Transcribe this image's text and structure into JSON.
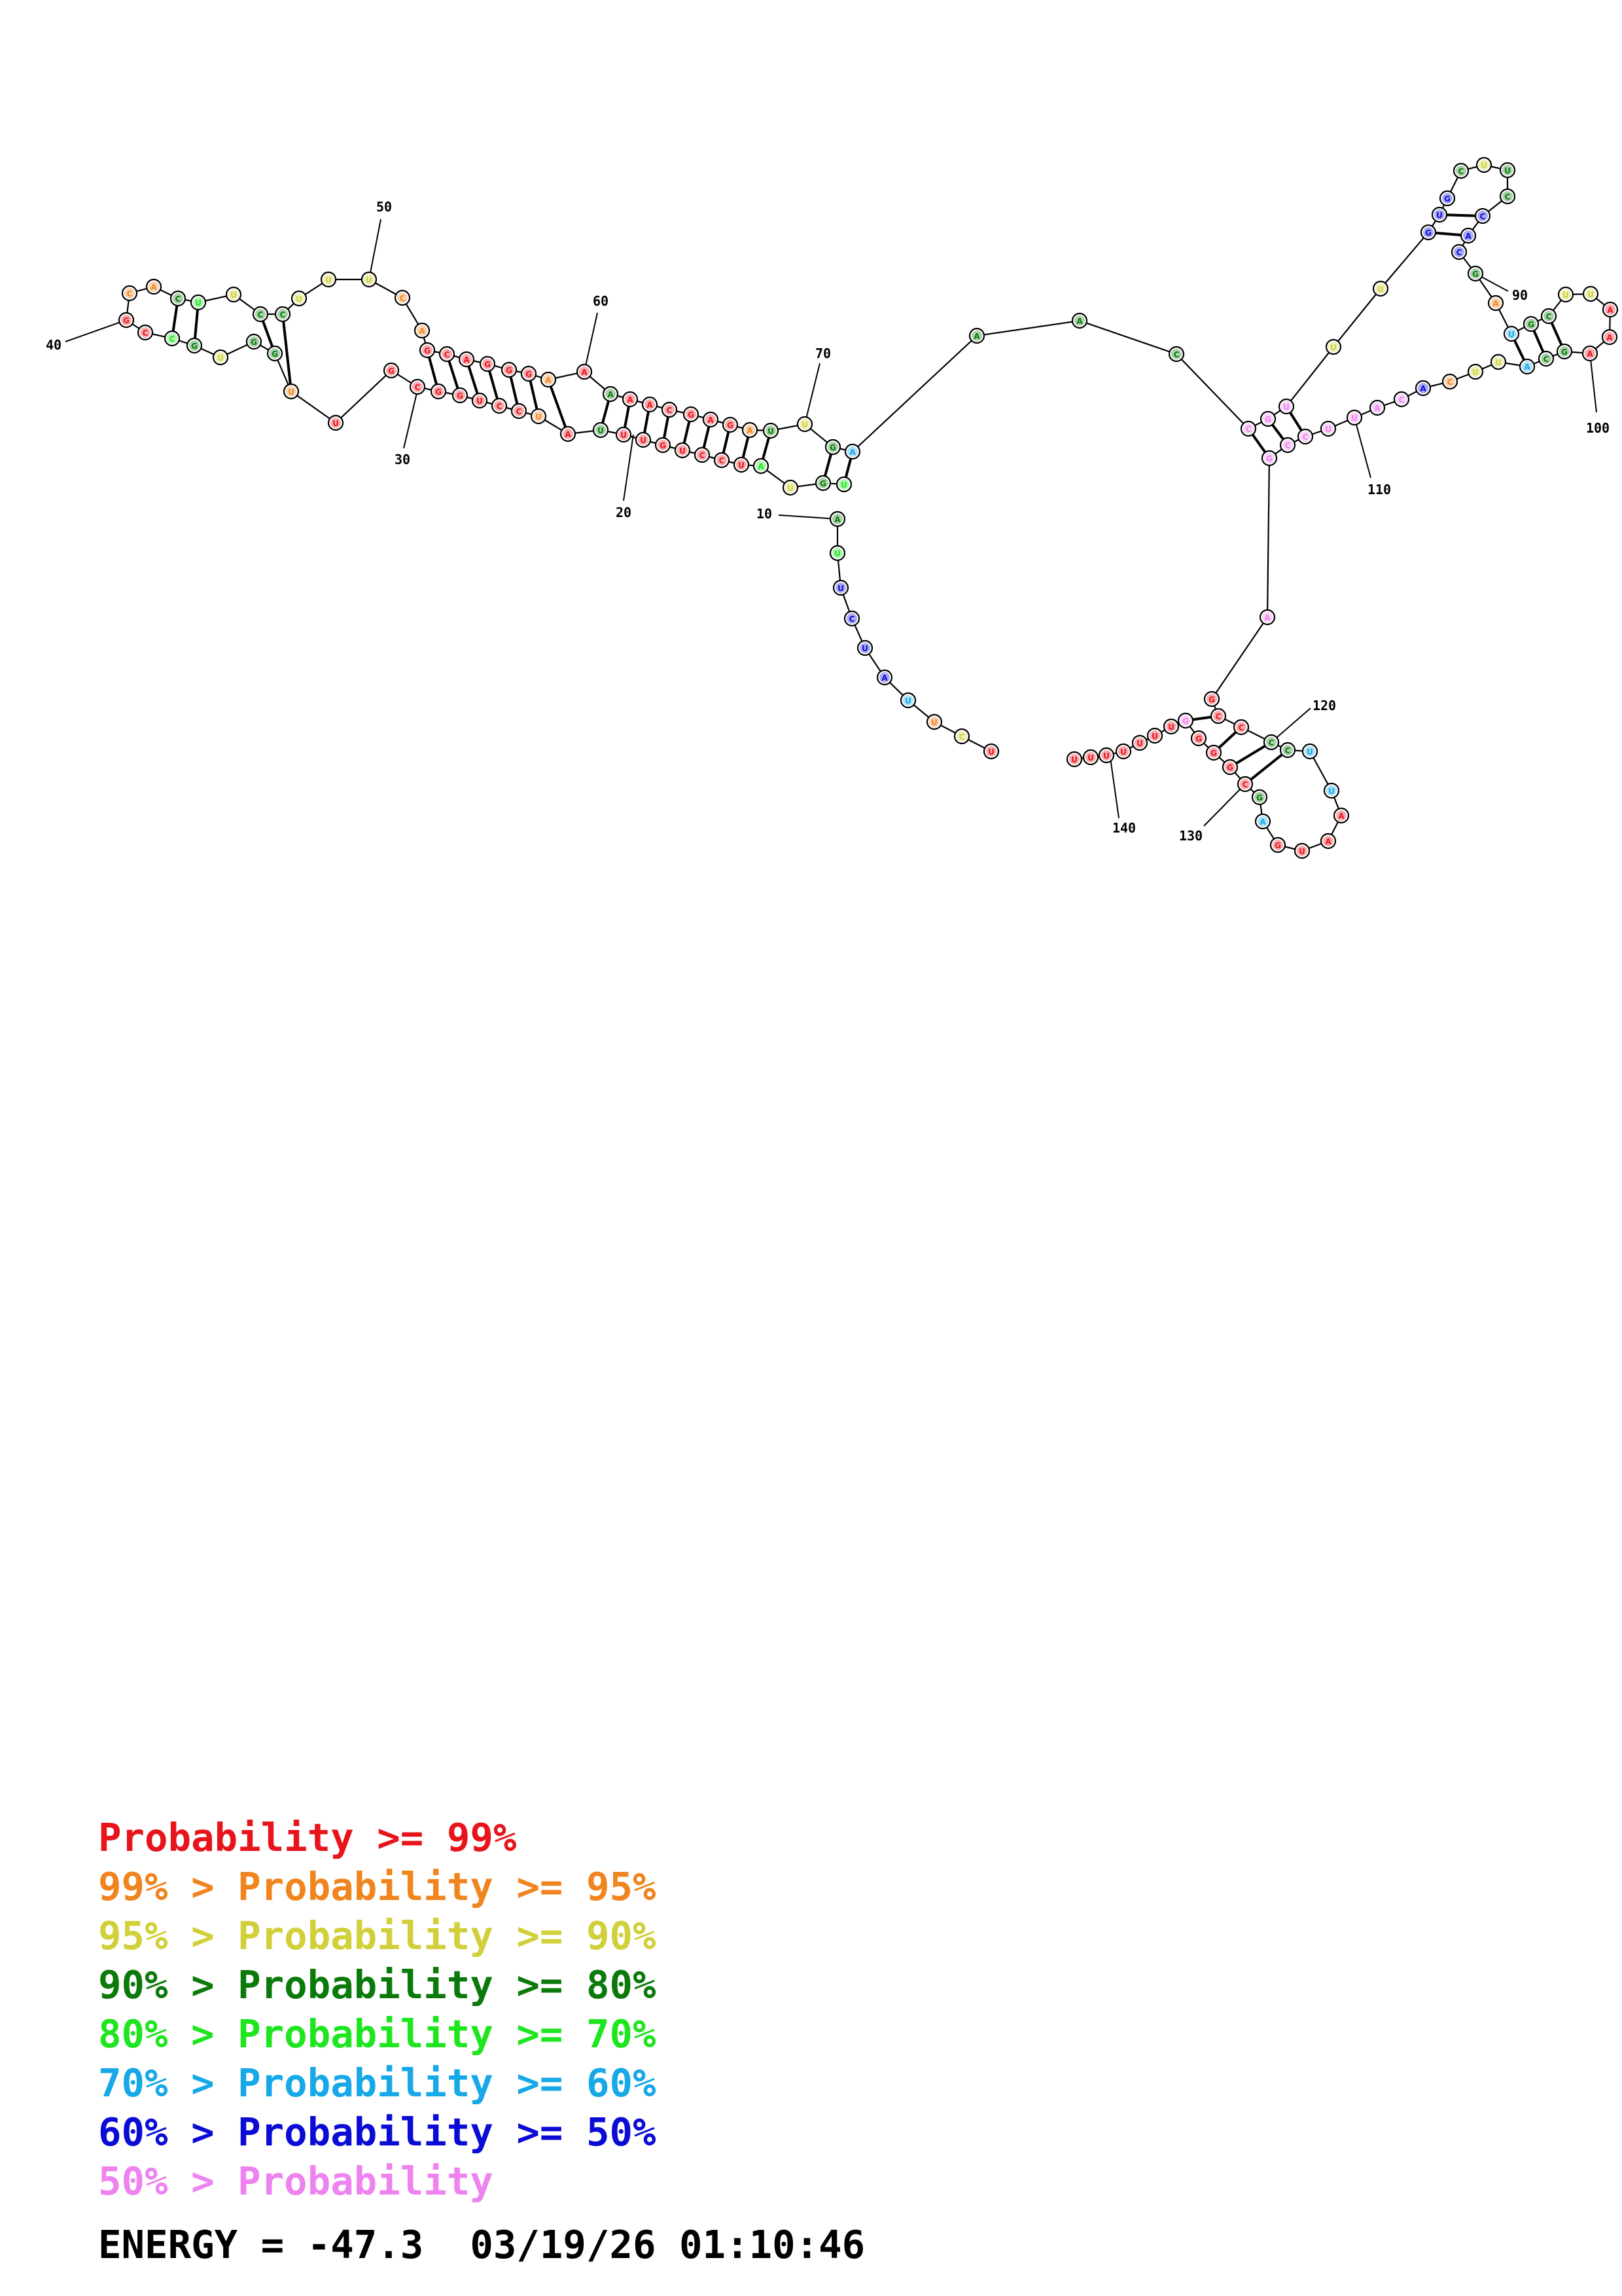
{
  "colors": {
    "p99": "#e8141c",
    "p95": "#f0851f",
    "p90": "#d1d03a",
    "p80": "#0b7a0b",
    "p70": "#1ee61e",
    "p60": "#17a8e8",
    "p50": "#0b0bd6",
    "p00": "#ee82ee"
  },
  "index_labels": [
    "10",
    "20",
    "30",
    "40",
    "50",
    "60",
    "70",
    "90",
    "100",
    "110",
    "120",
    "130",
    "140"
  ],
  "legend": [
    {
      "prefix": "",
      "text": "Probability >= 99%",
      "color": "#e8141c"
    },
    {
      "prefix": "99% > ",
      "text": "Probability >= 95%",
      "color": "#f0851f"
    },
    {
      "prefix": "95% > ",
      "text": "Probability >= 90%",
      "color": "#d1d03a"
    },
    {
      "prefix": "90% > ",
      "text": "Probability >= 80%",
      "color": "#0b7a0b"
    },
    {
      "prefix": "80% > ",
      "text": "Probability >= 70%",
      "color": "#1ee61e"
    },
    {
      "prefix": "70% > ",
      "text": "Probability >= 60%",
      "color": "#17a8e8"
    },
    {
      "prefix": "60% > ",
      "text": "Probability >= 50%",
      "color": "#0b0bd6"
    },
    {
      "prefix": "50% > ",
      "text": "Probability",
      "color": "#ee82ee"
    }
  ],
  "footer": "ENERGY = -47.3  03/19/26 01:10:46"
}
